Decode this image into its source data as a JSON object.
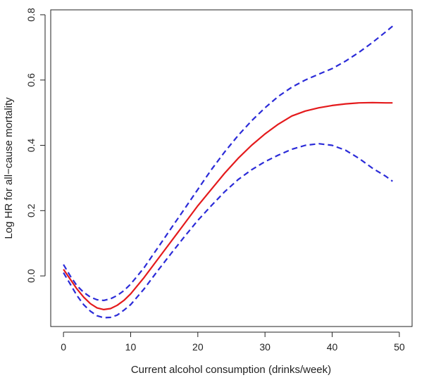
{
  "chart_data": {
    "type": "line",
    "title": "",
    "xlabel": "Current alcohol consumption (drinks/week)",
    "ylabel": "Log HR for all−cause mortality",
    "xlim": [
      -1.9,
      51.9
    ],
    "ylim": [
      -0.155,
      0.815
    ],
    "xticks": [
      0,
      10,
      20,
      30,
      40,
      50
    ],
    "xtick_labels": [
      "0",
      "10",
      "20",
      "30",
      "40",
      "50"
    ],
    "yticks": [
      0.0,
      0.2,
      0.4,
      0.6,
      0.8
    ],
    "ytick_labels": [
      "0.0",
      "0.2",
      "0.4",
      "0.6",
      "0.8"
    ],
    "grid": false,
    "legend": "none",
    "series": [
      {
        "style": "solid",
        "color": "#e41a1c",
        "x": [
          0,
          1,
          2,
          3,
          4,
          5,
          6,
          7,
          8,
          9,
          10,
          12,
          14,
          16,
          18,
          20,
          22,
          24,
          26,
          28,
          30,
          32,
          34,
          36,
          38,
          40,
          42,
          44,
          46,
          48,
          49
        ],
        "y": [
          0.02,
          -0.01,
          -0.04,
          -0.065,
          -0.085,
          -0.098,
          -0.103,
          -0.1,
          -0.09,
          -0.075,
          -0.055,
          -0.005,
          0.05,
          0.105,
          0.16,
          0.215,
          0.265,
          0.315,
          0.36,
          0.4,
          0.435,
          0.465,
          0.49,
          0.505,
          0.515,
          0.522,
          0.527,
          0.53,
          0.531,
          0.53,
          0.53
        ]
      },
      {
        "style": "dashed",
        "color": "#2b2bd8",
        "x": [
          0,
          1,
          2,
          3,
          4,
          5,
          6,
          7,
          8,
          9,
          10,
          12,
          14,
          16,
          18,
          20,
          22,
          24,
          26,
          28,
          30,
          32,
          34,
          36,
          38,
          40,
          42,
          44,
          46,
          48,
          49
        ],
        "y": [
          0.035,
          0.0,
          -0.03,
          -0.05,
          -0.065,
          -0.073,
          -0.075,
          -0.07,
          -0.06,
          -0.045,
          -0.025,
          0.025,
          0.085,
          0.145,
          0.205,
          0.265,
          0.325,
          0.38,
          0.43,
          0.475,
          0.515,
          0.55,
          0.578,
          0.6,
          0.618,
          0.635,
          0.658,
          0.685,
          0.715,
          0.748,
          0.765
        ]
      },
      {
        "style": "dashed",
        "color": "#2b2bd8",
        "x": [
          0,
          1,
          2,
          3,
          4,
          5,
          6,
          7,
          8,
          9,
          10,
          12,
          14,
          16,
          18,
          20,
          22,
          24,
          26,
          28,
          30,
          32,
          34,
          36,
          38,
          40,
          42,
          44,
          46,
          48,
          49
        ],
        "y": [
          0.01,
          -0.025,
          -0.06,
          -0.088,
          -0.108,
          -0.122,
          -0.128,
          -0.127,
          -0.12,
          -0.105,
          -0.088,
          -0.04,
          0.015,
          0.068,
          0.12,
          0.17,
          0.215,
          0.258,
          0.295,
          0.325,
          0.35,
          0.37,
          0.388,
          0.4,
          0.405,
          0.4,
          0.385,
          0.36,
          0.33,
          0.305,
          0.29
        ]
      }
    ]
  }
}
